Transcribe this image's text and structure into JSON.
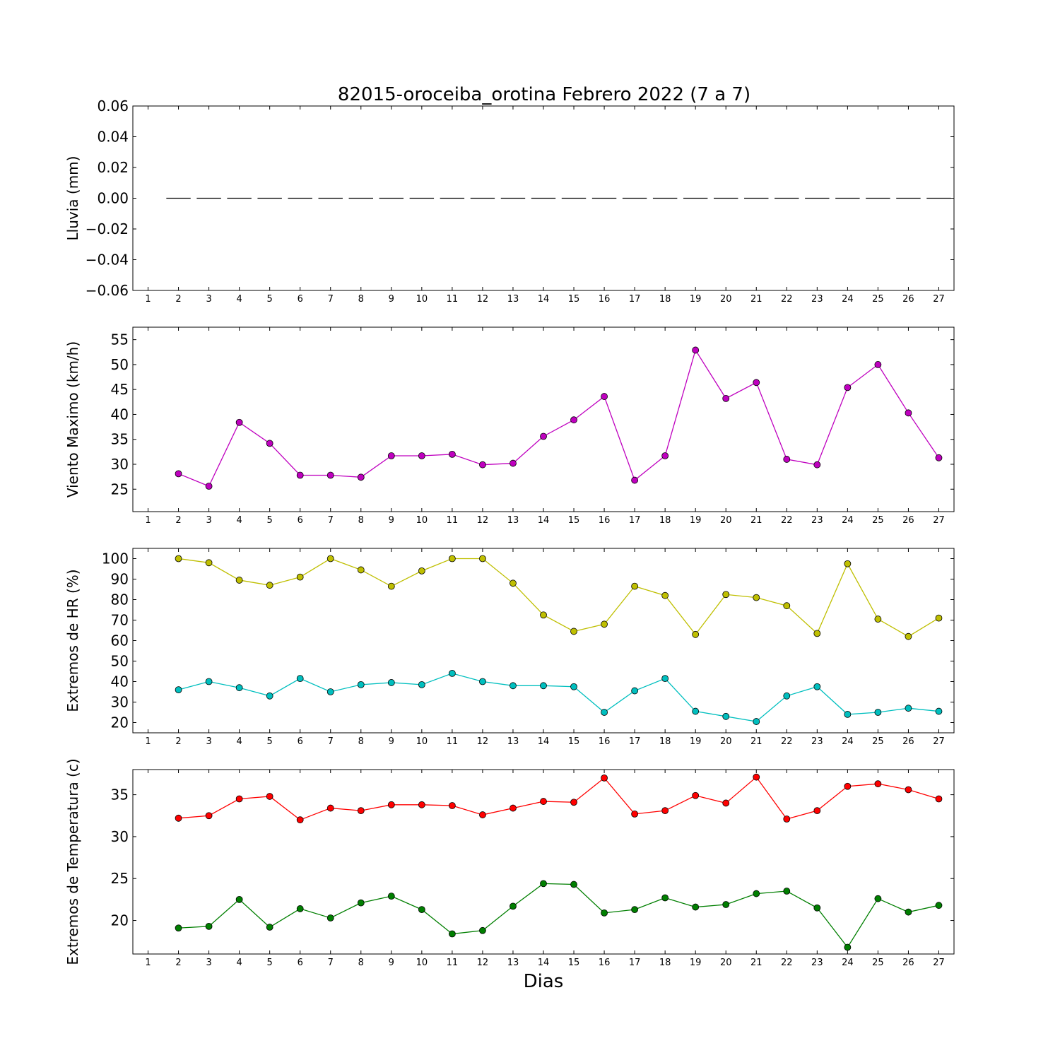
{
  "chart_data": {
    "type": "line",
    "title": "82015-oroceiba_orotina Febrero 2022  (7 a 7)",
    "xlabel": "Dias",
    "x_ticks": [
      1,
      2,
      3,
      4,
      5,
      6,
      7,
      8,
      9,
      10,
      11,
      12,
      13,
      14,
      15,
      16,
      17,
      18,
      19,
      20,
      21,
      22,
      23,
      24,
      25,
      26,
      27
    ],
    "x_range": [
      0.5,
      27.5
    ],
    "days": [
      2,
      3,
      4,
      5,
      6,
      7,
      8,
      9,
      10,
      11,
      12,
      13,
      14,
      15,
      16,
      17,
      18,
      19,
      20,
      21,
      22,
      23,
      24,
      25,
      26,
      27
    ],
    "panels": [
      {
        "ylabel": "Lluvia (mm)",
        "ylim": [
          -0.06,
          0.06
        ],
        "yticks": [
          -0.06,
          -0.04,
          -0.02,
          0.0,
          0.02,
          0.04,
          0.06
        ],
        "ytick_labels": [
          "−0.06",
          "−0.04",
          "−0.02",
          "0.00",
          "0.02",
          "0.04",
          "0.06"
        ],
        "series": [
          {
            "style": "step",
            "color": "#000000",
            "values": [
              0,
              0,
              0,
              0,
              0,
              0,
              0,
              0,
              0,
              0,
              0,
              0,
              0,
              0,
              0,
              0,
              0,
              0,
              0,
              0,
              0,
              0,
              0,
              0,
              0,
              0
            ]
          }
        ]
      },
      {
        "ylabel": "Viento Maximo (km/h)",
        "ylim": [
          20.5,
          57.5
        ],
        "yticks": [
          25,
          30,
          35,
          40,
          45,
          50,
          55
        ],
        "ytick_labels": [
          "25",
          "30",
          "35",
          "40",
          "45",
          "50",
          "55"
        ],
        "series": [
          {
            "style": "line-marker",
            "color": "#bf00bf",
            "values": [
              28.1,
              25.6,
              38.4,
              34.2,
              27.8,
              27.8,
              27.4,
              31.7,
              31.7,
              32.0,
              29.9,
              30.2,
              35.6,
              38.9,
              43.6,
              26.8,
              31.7,
              52.9,
              43.2,
              46.4,
              31.0,
              29.9,
              45.4,
              50.0,
              40.3,
              31.3
            ]
          }
        ]
      },
      {
        "ylabel": "Extremos de HR (%)",
        "ylim": [
          15,
          105
        ],
        "yticks": [
          20,
          30,
          40,
          50,
          60,
          70,
          80,
          90,
          100
        ],
        "ytick_labels": [
          "20",
          "30",
          "40",
          "50",
          "60",
          "70",
          "80",
          "90",
          "100"
        ],
        "series": [
          {
            "style": "line-marker",
            "color": "#bfbf00",
            "values": [
              100,
              98,
              89.5,
              87,
              91,
              100,
              94.5,
              86.5,
              94,
              100,
              100,
              88,
              72.5,
              64.5,
              68,
              86.5,
              82,
              63,
              82.5,
              81,
              77,
              63.5,
              97.5,
              70.5,
              62,
              71
            ]
          },
          {
            "style": "line-marker",
            "color": "#00bfbf",
            "values": [
              36,
              40,
              37,
              33,
              41.5,
              35,
              38.5,
              39.5,
              38.5,
              44,
              40,
              38,
              38,
              37.5,
              25,
              35.5,
              41.5,
              25.5,
              23,
              20.5,
              33,
              37.5,
              24,
              25,
              27,
              25.5
            ]
          }
        ]
      },
      {
        "ylabel": "Extremos de Temperatura (c)",
        "ylim": [
          16,
          38
        ],
        "yticks": [
          20,
          25,
          30,
          35
        ],
        "ytick_labels": [
          "20",
          "25",
          "30",
          "35"
        ],
        "series": [
          {
            "style": "line-marker",
            "color": "#ff0000",
            "values": [
              32.2,
              32.5,
              34.5,
              34.8,
              32.0,
              33.4,
              33.1,
              33.8,
              33.8,
              33.7,
              32.6,
              33.4,
              34.2,
              34.1,
              37.0,
              32.7,
              33.1,
              34.9,
              34.0,
              37.1,
              32.1,
              33.1,
              36.0,
              36.3,
              35.6,
              34.5
            ]
          },
          {
            "style": "line-marker",
            "color": "#007f00",
            "values": [
              19.1,
              19.3,
              22.5,
              19.2,
              21.4,
              20.3,
              22.1,
              22.9,
              21.3,
              18.4,
              18.8,
              21.7,
              24.4,
              24.3,
              20.9,
              21.3,
              22.7,
              21.6,
              21.9,
              23.2,
              23.5,
              21.5,
              16.8,
              22.6,
              21.0,
              21.8
            ]
          }
        ]
      }
    ]
  }
}
